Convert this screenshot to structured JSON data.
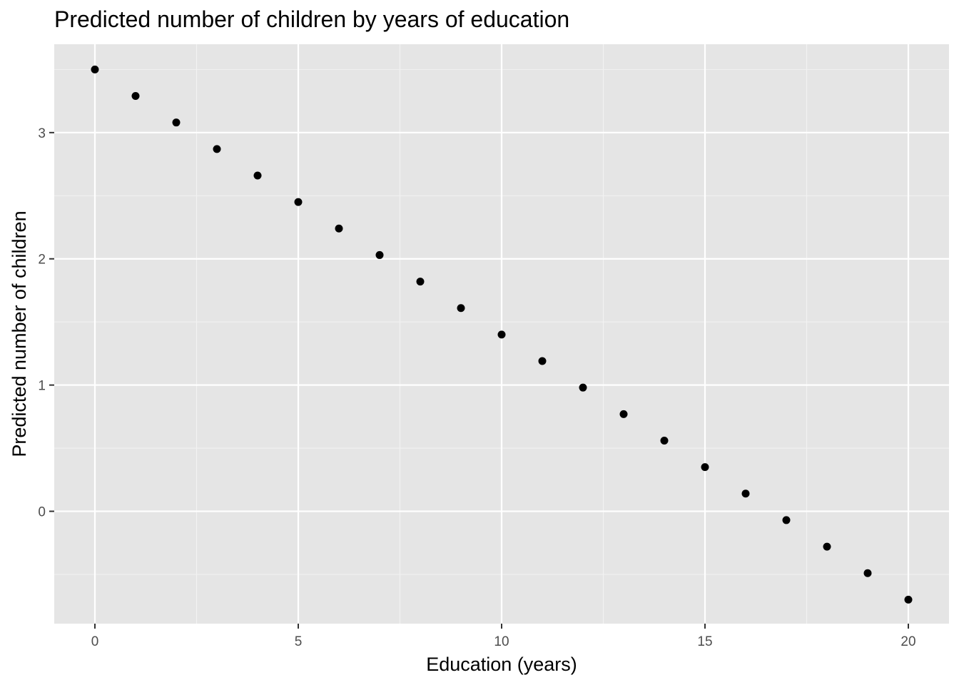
{
  "chart_data": {
    "type": "scatter",
    "title": "Predicted number of children by years of education",
    "xlabel": "Education (years)",
    "ylabel": "Predicted number of children",
    "x": [
      0,
      1,
      2,
      3,
      4,
      5,
      6,
      7,
      8,
      9,
      10,
      11,
      12,
      13,
      14,
      15,
      16,
      17,
      18,
      19,
      20
    ],
    "y": [
      3.5,
      3.29,
      3.08,
      2.87,
      2.66,
      2.45,
      2.24,
      2.03,
      1.82,
      1.61,
      1.4,
      1.19,
      0.98,
      0.77,
      0.56,
      0.35,
      0.14,
      -0.07,
      -0.28,
      -0.49,
      -0.7
    ],
    "xlim": [
      -1,
      21
    ],
    "ylim": [
      -0.89,
      3.7
    ],
    "xticks": [
      0,
      5,
      10,
      15,
      20
    ],
    "xtick_labels": [
      "0",
      "5",
      "10",
      "15",
      "20"
    ],
    "yticks": [
      0,
      1,
      2,
      3
    ],
    "ytick_labels": [
      "0",
      "1",
      "2",
      "3"
    ],
    "grid": true,
    "legend": "none",
    "colors": {
      "panel_background": "#e5e5e5",
      "grid_major": "#ffffff",
      "grid_minor": "#f2f2f2",
      "point": "#000000",
      "tick_label": "#4d4d4d",
      "tick_mark": "#333333"
    }
  }
}
